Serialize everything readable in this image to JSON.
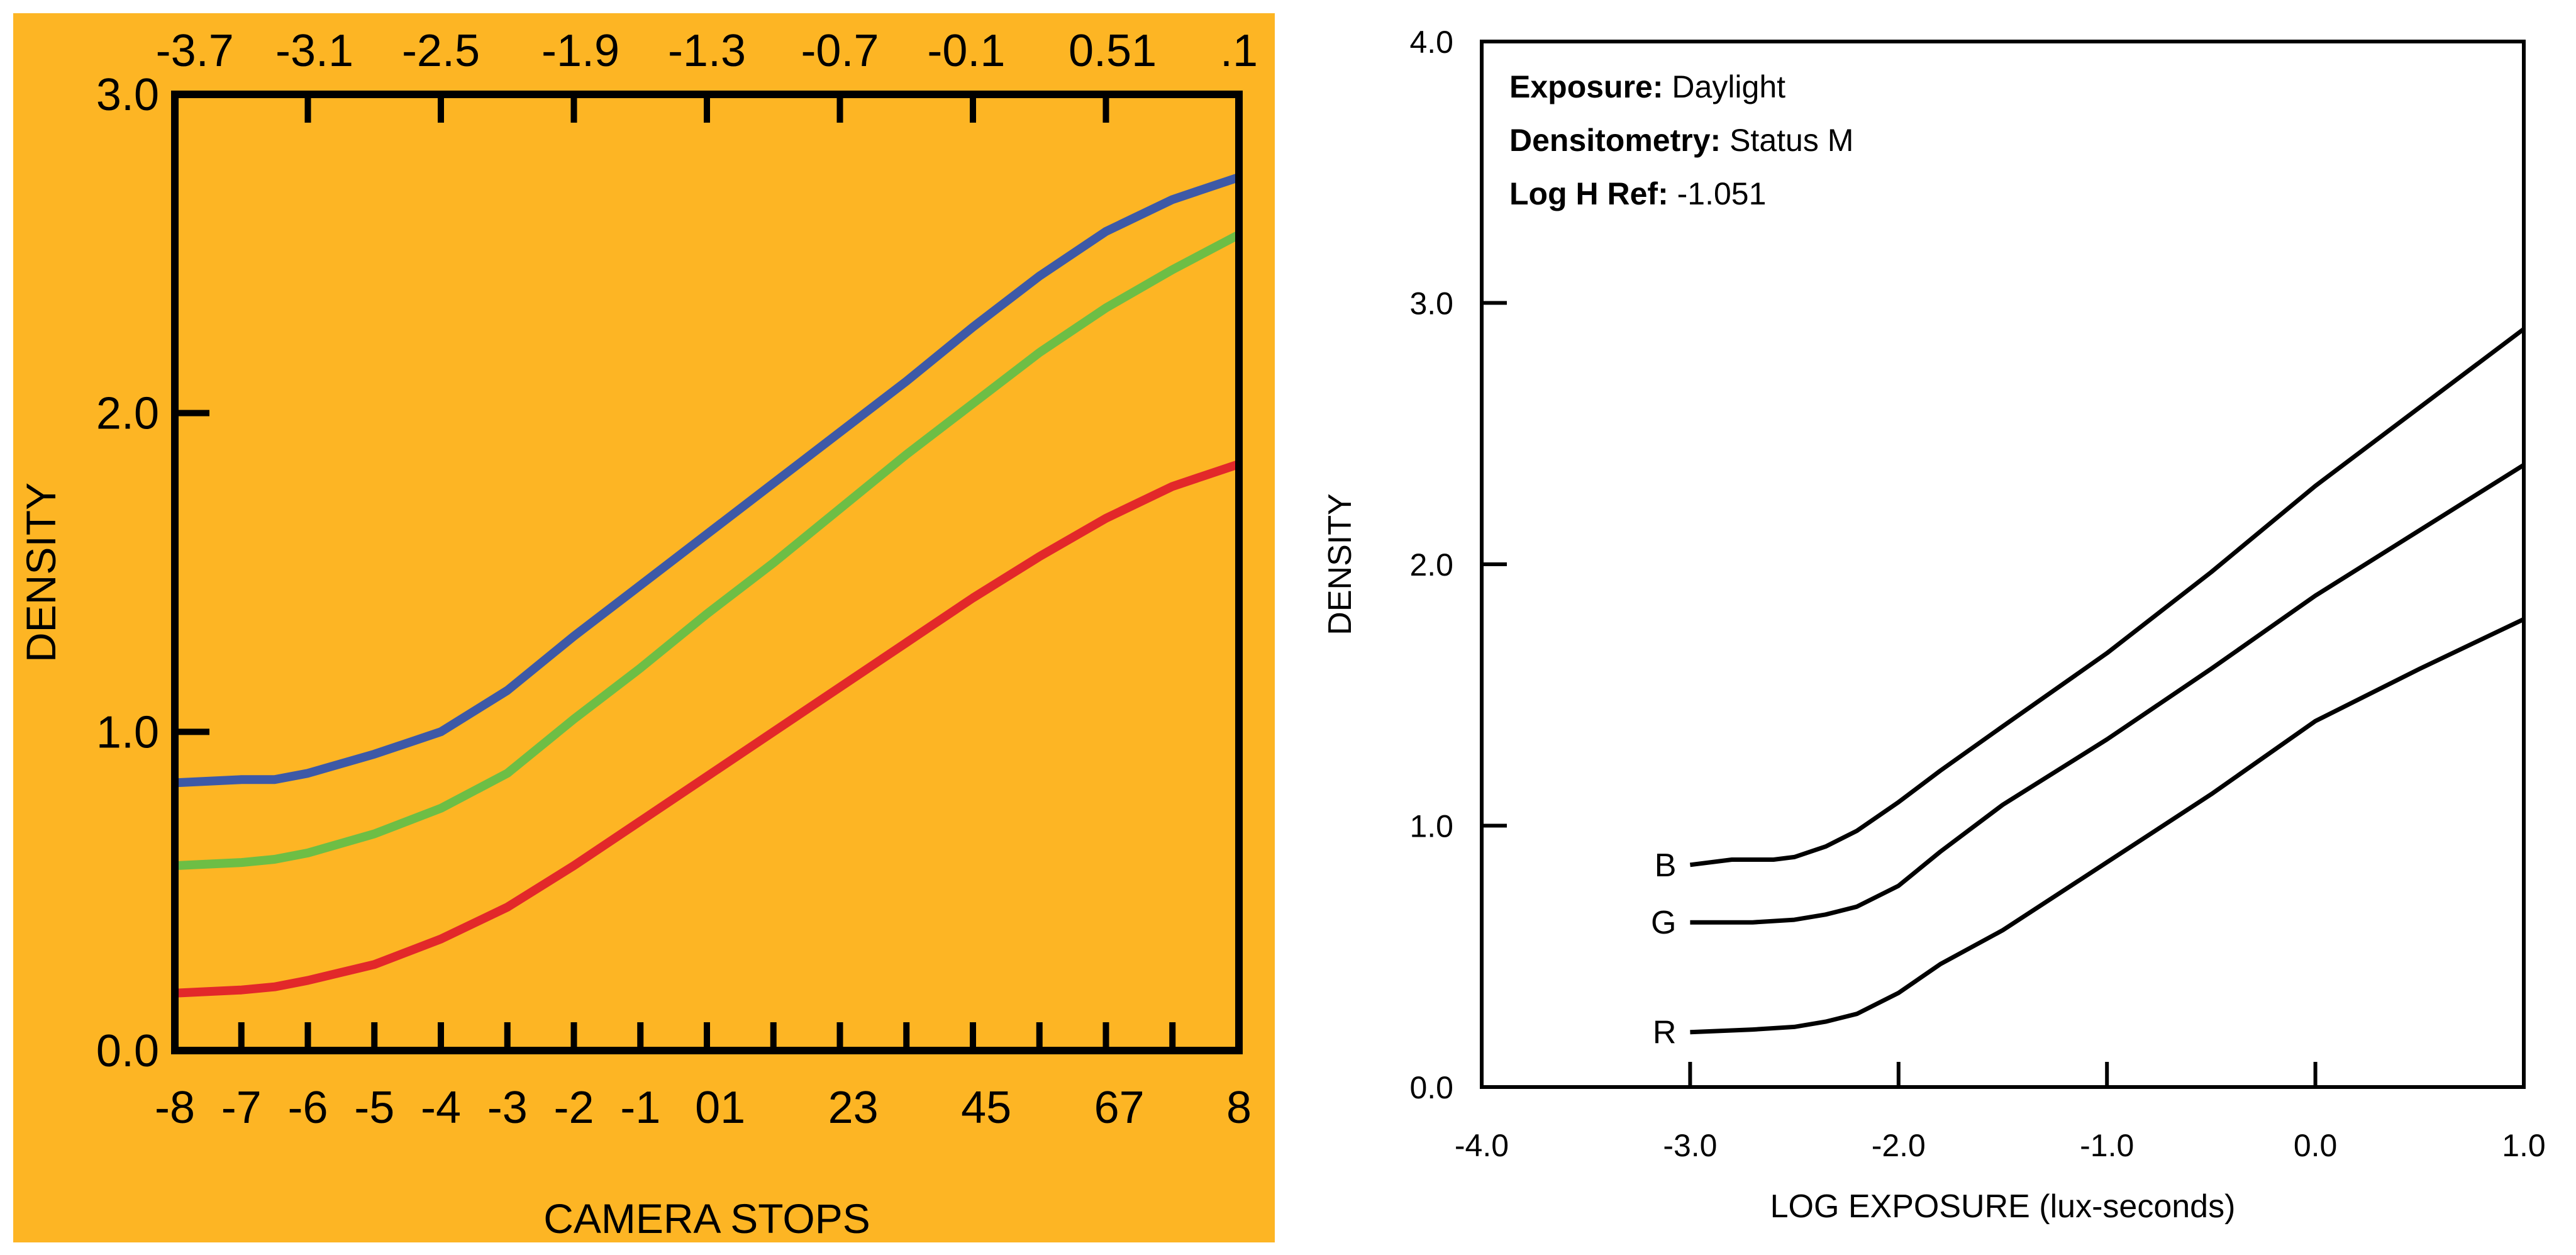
{
  "chart_data": [
    {
      "type": "line",
      "background": "#FDB524",
      "xlabel": "CAMERA STOPS",
      "ylabel": "DENSITY",
      "xlim": [
        -8,
        8
      ],
      "ylim": [
        0,
        3.0
      ],
      "y_ticks": [
        {
          "v": 0,
          "label": "0.0"
        },
        {
          "v": 1,
          "label": "1.0"
        },
        {
          "v": 2,
          "label": "2.0"
        },
        {
          "v": 3,
          "label": "3.0"
        }
      ],
      "x_tick_values": [
        -7,
        -6,
        -5,
        -4,
        -3,
        -2,
        -1,
        0,
        1,
        2,
        3,
        4,
        5,
        6,
        7
      ],
      "x_tick_labels": [
        {
          "v": -8,
          "label": "-8"
        },
        {
          "v": -7,
          "label": "-7"
        },
        {
          "v": -6,
          "label": "-6"
        },
        {
          "v": -5,
          "label": "-5"
        },
        {
          "v": -4,
          "label": "-4"
        },
        {
          "v": -3,
          "label": "-3"
        },
        {
          "v": -2,
          "label": "-2"
        },
        {
          "v": -1,
          "label": "-1"
        },
        {
          "v": 0.2,
          "label": "01"
        },
        {
          "v": 2.2,
          "label": "23"
        },
        {
          "v": 4.2,
          "label": "45"
        },
        {
          "v": 6.2,
          "label": "67"
        },
        {
          "v": 8,
          "label": "8"
        }
      ],
      "top_tick_values": [
        -6,
        -4,
        -2,
        0,
        2,
        4,
        6
      ],
      "top_tick_labels": [
        {
          "v": -7.7,
          "label": "-3.7"
        },
        {
          "v": -5.9,
          "label": "-3.1"
        },
        {
          "v": -4,
          "label": "-2.5"
        },
        {
          "v": -1.9,
          "label": "-1.9"
        },
        {
          "v": 0,
          "label": "-1.3"
        },
        {
          "v": 2,
          "label": "-0.7"
        },
        {
          "v": 3.9,
          "label": "-0.1"
        },
        {
          "v": 6.1,
          "label": "0.51"
        },
        {
          "v": 8,
          "label": ".1"
        }
      ],
      "series": [
        {
          "name": "Blue",
          "color": "#3D59A7",
          "x": [
            -8,
            -7,
            -6.5,
            -6,
            -5,
            -4,
            -3,
            -2,
            -1,
            0,
            1,
            2,
            3,
            4,
            5,
            6,
            7,
            8
          ],
          "y": [
            0.84,
            0.85,
            0.85,
            0.87,
            0.93,
            1.0,
            1.13,
            1.3,
            1.46,
            1.62,
            1.78,
            1.94,
            2.1,
            2.27,
            2.43,
            2.57,
            2.67,
            2.74
          ]
        },
        {
          "name": "Green",
          "color": "#6DBE45",
          "x": [
            -8,
            -7,
            -6.5,
            -6,
            -5,
            -4,
            -3,
            -2,
            -1,
            0,
            1,
            2,
            3,
            4,
            5,
            6,
            7,
            8
          ],
          "y": [
            0.58,
            0.59,
            0.6,
            0.62,
            0.68,
            0.76,
            0.87,
            1.04,
            1.2,
            1.37,
            1.53,
            1.7,
            1.87,
            2.03,
            2.19,
            2.33,
            2.45,
            2.56
          ]
        },
        {
          "name": "Red",
          "color": "#E2282A",
          "x": [
            -8,
            -7,
            -6.5,
            -6,
            -5,
            -4,
            -3,
            -2,
            -1,
            0,
            1,
            2,
            3,
            4,
            5,
            6,
            7,
            8
          ],
          "y": [
            0.18,
            0.19,
            0.2,
            0.22,
            0.27,
            0.35,
            0.45,
            0.58,
            0.72,
            0.86,
            1.0,
            1.14,
            1.28,
            1.42,
            1.55,
            1.67,
            1.77,
            1.84
          ]
        }
      ]
    },
    {
      "type": "line",
      "background": "#FFFFFF",
      "xlabel": "LOG EXPOSURE (lux-seconds)",
      "ylabel": "DENSITY",
      "xlim": [
        -4.0,
        1.0
      ],
      "ylim": [
        0,
        4.0
      ],
      "y_ticks": [
        {
          "v": 0,
          "label": "0.0"
        },
        {
          "v": 1,
          "label": "1.0"
        },
        {
          "v": 2,
          "label": "2.0"
        },
        {
          "v": 3,
          "label": "3.0"
        },
        {
          "v": 4,
          "label": "4.0"
        }
      ],
      "x_tick_values": [
        -3,
        -2,
        -1,
        0
      ],
      "x_tick_labels": [
        {
          "v": -4,
          "label": "-4.0"
        },
        {
          "v": -3,
          "label": "-3.0"
        },
        {
          "v": -2,
          "label": "-2.0"
        },
        {
          "v": -1,
          "label": "-1.0"
        },
        {
          "v": 0,
          "label": "0.0"
        },
        {
          "v": 1,
          "label": "1.0"
        }
      ],
      "annotations": [
        {
          "key": "Exposure:",
          "value": "Daylight"
        },
        {
          "key": "Densitometry:",
          "value": "Status M"
        },
        {
          "key": "Log H Ref:",
          "value": "-1.051"
        }
      ],
      "series": [
        {
          "name": "B",
          "color": "#000000",
          "x": [
            -3,
            -2.8,
            -2.6,
            -2.5,
            -2.35,
            -2.2,
            -2,
            -1.8,
            -1.5,
            -1,
            -0.5,
            0,
            0.5,
            1
          ],
          "y": [
            0.85,
            0.87,
            0.87,
            0.88,
            0.92,
            0.98,
            1.09,
            1.21,
            1.38,
            1.66,
            1.97,
            2.3,
            2.6,
            2.9
          ]
        },
        {
          "name": "G",
          "color": "#000000",
          "x": [
            -3,
            -2.7,
            -2.5,
            -2.35,
            -2.2,
            -2,
            -1.8,
            -1.5,
            -1,
            -0.5,
            0,
            0.5,
            1
          ],
          "y": [
            0.63,
            0.63,
            0.64,
            0.66,
            0.69,
            0.77,
            0.9,
            1.08,
            1.33,
            1.6,
            1.88,
            2.13,
            2.38
          ]
        },
        {
          "name": "R",
          "color": "#000000",
          "x": [
            -3,
            -2.7,
            -2.5,
            -2.35,
            -2.2,
            -2,
            -1.8,
            -1.5,
            -1,
            -0.5,
            0,
            0.5,
            1
          ],
          "y": [
            0.21,
            0.22,
            0.23,
            0.25,
            0.28,
            0.36,
            0.47,
            0.6,
            0.86,
            1.12,
            1.4,
            1.6,
            1.79
          ]
        }
      ]
    }
  ]
}
